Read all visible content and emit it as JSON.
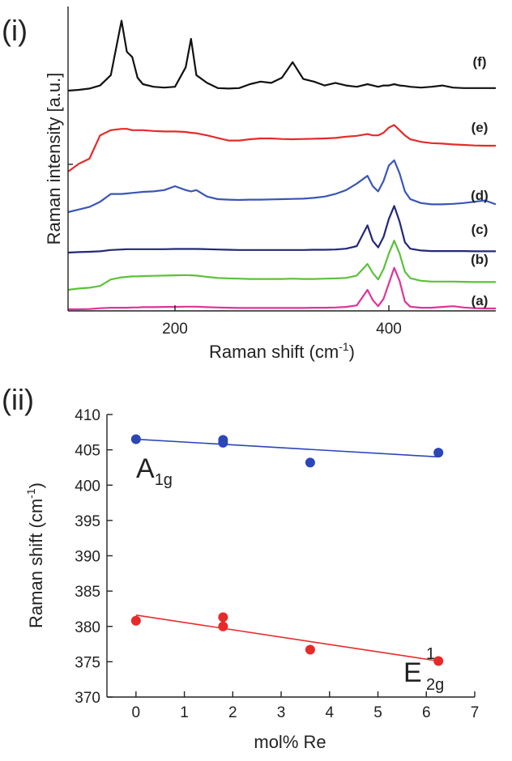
{
  "figure": {
    "panel_i": {
      "label": "(i)",
      "ylabel": "Raman intensity [a.u.]",
      "xlabel_main": "Raman shift (cm",
      "xlabel_sup": "-1",
      "xlabel_close": ")",
      "xticks": [
        "200",
        "400"
      ]
    },
    "panel_ii": {
      "label": "(ii)",
      "ylabel_main": "Raman shift (cm",
      "ylabel_sup": "-1",
      "ylabel_close": ")",
      "xlabel": "mol% Re",
      "xticks": [
        "0",
        "1",
        "2",
        "3",
        "4",
        "5",
        "6",
        "7"
      ],
      "yticks": [
        "370",
        "375",
        "380",
        "385",
        "390",
        "395",
        "400",
        "405",
        "410"
      ],
      "a1g_main": "A",
      "a1g_sub": "1g",
      "e2g_main": "E",
      "e2g_sup": "1",
      "e2g_sub": "2g"
    }
  },
  "chart_data": [
    {
      "type": "line",
      "xlabel": "Raman shift (cm-1)",
      "ylabel": "Raman intensity [a.u.]",
      "xlim": [
        100,
        500
      ],
      "x_ticks": [
        200,
        400
      ],
      "y_ticks_labeled": false,
      "grid": false,
      "x": [
        100,
        110,
        120,
        130,
        140,
        150,
        155,
        160,
        165,
        170,
        180,
        190,
        200,
        210,
        215,
        220,
        230,
        240,
        250,
        260,
        270,
        280,
        290,
        300,
        310,
        320,
        330,
        340,
        350,
        360,
        370,
        380,
        385,
        390,
        395,
        400,
        405,
        410,
        415,
        420,
        430,
        440,
        450,
        460,
        470,
        480,
        490,
        500
      ],
      "series": [
        {
          "name": "(a)",
          "color": "#e0339a",
          "values": [
            0.0,
            0.0,
            0.1,
            0.4,
            0.6,
            0.6,
            0.6,
            0.7,
            0.7,
            0.8,
            0.8,
            0.9,
            0.9,
            1.0,
            1.0,
            1.0,
            0.8,
            0.7,
            0.6,
            0.5,
            0.5,
            0.5,
            0.5,
            0.5,
            0.5,
            0.5,
            0.6,
            0.6,
            0.7,
            0.9,
            1.5,
            7.5,
            3.5,
            1.2,
            4.0,
            10.0,
            16.0,
            11.0,
            3.0,
            1.0,
            0.6,
            0.6,
            0.9,
            1.2,
            0.7,
            0.4,
            0.3,
            0.3
          ]
        },
        {
          "name": "(b)",
          "color": "#5cc13a",
          "values": [
            0.0,
            0.5,
            0.8,
            1.5,
            4.0,
            4.8,
            5.0,
            5.2,
            5.2,
            5.3,
            5.4,
            5.5,
            5.6,
            5.7,
            5.6,
            5.5,
            5.0,
            4.6,
            4.4,
            4.3,
            4.2,
            4.2,
            4.2,
            4.2,
            4.3,
            4.2,
            4.2,
            4.3,
            4.4,
            4.6,
            5.5,
            10.0,
            6.5,
            4.0,
            8.0,
            14.0,
            19.0,
            14.0,
            7.0,
            4.5,
            3.5,
            3.2,
            3.2,
            3.2,
            3.1,
            3.0,
            3.0,
            3.0
          ]
        },
        {
          "name": "(c)",
          "color": "#22287a",
          "values": [
            0.0,
            0.2,
            0.3,
            0.5,
            1.0,
            1.2,
            1.3,
            1.3,
            1.3,
            1.3,
            1.3,
            1.3,
            1.4,
            1.4,
            1.4,
            1.4,
            1.3,
            1.2,
            1.1,
            1.0,
            1.0,
            1.0,
            1.0,
            1.0,
            1.0,
            1.0,
            1.1,
            1.1,
            1.2,
            1.5,
            2.5,
            10.5,
            4.5,
            2.0,
            6.0,
            13.0,
            18.0,
            12.0,
            4.0,
            1.5,
            0.8,
            0.6,
            0.6,
            0.6,
            0.6,
            0.5,
            0.5,
            0.5
          ]
        },
        {
          "name": "(d)",
          "color": "#3a56b5",
          "values": [
            0.0,
            1.0,
            2.0,
            4.0,
            7.0,
            7.0,
            7.2,
            7.4,
            7.6,
            7.8,
            8.0,
            8.5,
            10.0,
            8.5,
            8.0,
            8.5,
            6.0,
            5.0,
            4.8,
            4.7,
            4.8,
            4.8,
            4.9,
            5.0,
            5.1,
            5.2,
            5.5,
            6.0,
            7.0,
            8.5,
            11.0,
            14.0,
            10.0,
            8.0,
            12.0,
            18.0,
            20.0,
            15.0,
            8.0,
            5.0,
            3.5,
            3.0,
            3.0,
            3.2,
            3.5,
            4.0,
            4.5,
            3.0
          ]
        },
        {
          "name": "(e)",
          "color": "#e62a2a",
          "values": [
            0.0,
            3.0,
            5.0,
            14.0,
            16.0,
            16.5,
            16.5,
            16.0,
            16.0,
            16.0,
            15.7,
            15.5,
            15.5,
            15.3,
            15.0,
            14.8,
            14.0,
            13.0,
            12.0,
            12.0,
            12.5,
            12.8,
            12.8,
            12.6,
            12.5,
            12.6,
            12.7,
            12.8,
            13.0,
            13.5,
            13.8,
            14.5,
            14.0,
            14.0,
            15.0,
            17.0,
            18.0,
            16.0,
            14.0,
            12.5,
            11.5,
            11.0,
            10.8,
            10.5,
            10.3,
            10.1,
            10.0,
            10.0
          ]
        },
        {
          "name": "(f)",
          "color": "#111111",
          "values": [
            0.0,
            0.3,
            0.8,
            2.0,
            6.0,
            27.0,
            15.0,
            13.0,
            5.0,
            2.5,
            1.5,
            1.2,
            1.5,
            9.0,
            20.0,
            6.0,
            3.0,
            1.0,
            0.8,
            1.0,
            2.5,
            3.5,
            3.0,
            5.0,
            11.0,
            4.5,
            3.5,
            2.0,
            3.0,
            2.0,
            1.5,
            2.5,
            2.0,
            1.5,
            2.0,
            2.0,
            2.5,
            2.0,
            1.8,
            1.5,
            1.2,
            1.5,
            2.0,
            1.2,
            1.0,
            1.0,
            1.0,
            1.0
          ]
        }
      ]
    },
    {
      "type": "scatter",
      "xlabel": "mol% Re",
      "ylabel": "Raman shift (cm-1)",
      "xlim": [
        -0.6,
        7
      ],
      "ylim": [
        370,
        410
      ],
      "x_ticks": [
        0,
        1,
        2,
        3,
        4,
        5,
        6,
        7
      ],
      "y_ticks": [
        370,
        375,
        380,
        385,
        390,
        395,
        400,
        405,
        410
      ],
      "grid": false,
      "series": [
        {
          "name": "A1g",
          "color": "#2b46b8",
          "points": [
            [
              0,
              406.5
            ],
            [
              1.8,
              406.0
            ],
            [
              1.8,
              406.4
            ],
            [
              3.6,
              403.2
            ],
            [
              6.25,
              404.6
            ]
          ],
          "fit": [
            [
              0,
              406.5
            ],
            [
              6.25,
              404.0
            ]
          ]
        },
        {
          "name": "E12g",
          "color": "#e62a2a",
          "points": [
            [
              0,
              380.8
            ],
            [
              1.8,
              381.3
            ],
            [
              1.8,
              380.0
            ],
            [
              3.6,
              376.7
            ],
            [
              6.25,
              375.1
            ]
          ],
          "fit": [
            [
              0,
              381.6
            ],
            [
              6.25,
              375.1
            ]
          ]
        }
      ]
    }
  ]
}
